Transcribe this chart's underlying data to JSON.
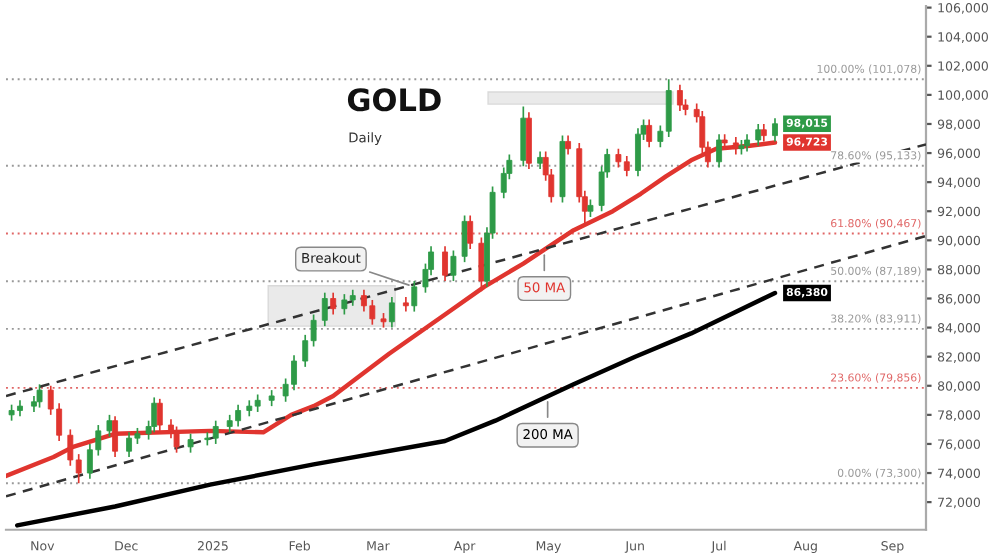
{
  "chart_data": {
    "type": "candlestick",
    "title": "GOLD",
    "subtitle": "Daily",
    "x": [
      "2024-10-21",
      "2024-10-24",
      "2024-10-29",
      "2024-10-31",
      "2024-11-04",
      "2024-11-07",
      "2024-11-11",
      "2024-11-14",
      "2024-11-18",
      "2024-11-21",
      "2024-11-25",
      "2024-11-27",
      "2024-12-02",
      "2024-12-05",
      "2024-12-09",
      "2024-12-11",
      "2024-12-13",
      "2024-12-17",
      "2024-12-19",
      "2024-12-24",
      "2024-12-30",
      "2025-01-02",
      "2025-01-07",
      "2025-01-10",
      "2025-01-14",
      "2025-01-17",
      "2025-01-22",
      "2025-01-27",
      "2025-01-30",
      "2025-02-03",
      "2025-02-06",
      "2025-02-10",
      "2025-02-13",
      "2025-02-17",
      "2025-02-20",
      "2025-02-24",
      "2025-02-27",
      "2025-03-03",
      "2025-03-06",
      "2025-03-11",
      "2025-03-14",
      "2025-03-18",
      "2025-03-20",
      "2025-03-25",
      "2025-03-28",
      "2025-04-01",
      "2025-04-03",
      "2025-04-07",
      "2025-04-09",
      "2025-04-11",
      "2025-04-15",
      "2025-04-17",
      "2025-04-22",
      "2025-04-24",
      "2025-04-28",
      "2025-04-30",
      "2025-05-02",
      "2025-05-06",
      "2025-05-08",
      "2025-05-12",
      "2025-05-14",
      "2025-05-16",
      "2025-05-20",
      "2025-05-22",
      "2025-05-26",
      "2025-05-29",
      "2025-06-02",
      "2025-06-04",
      "2025-06-06",
      "2025-06-10",
      "2025-06-13",
      "2025-06-17",
      "2025-06-19",
      "2025-06-23",
      "2025-06-25",
      "2025-06-27",
      "2025-07-01",
      "2025-07-03",
      "2025-07-07",
      "2025-07-09",
      "2025-07-11",
      "2025-07-15",
      "2025-07-17",
      "2025-07-21"
    ],
    "ohlc": [
      [
        78000,
        78700,
        77600,
        78300
      ],
      [
        78300,
        79000,
        77900,
        78600
      ],
      [
        78600,
        79300,
        78200,
        78900
      ],
      [
        78900,
        80100,
        78500,
        79700
      ],
      [
        79700,
        80000,
        78000,
        78400
      ],
      [
        78400,
        78800,
        76200,
        76600
      ],
      [
        76600,
        77000,
        74500,
        74900
      ],
      [
        74900,
        75300,
        73300,
        74000
      ],
      [
        74000,
        76000,
        73600,
        75600
      ],
      [
        75600,
        77300,
        75200,
        76900
      ],
      [
        76900,
        78000,
        76500,
        77600
      ],
      [
        77600,
        77900,
        75100,
        75500
      ],
      [
        75500,
        76800,
        75100,
        76400
      ],
      [
        76400,
        77100,
        76000,
        76700
      ],
      [
        76700,
        77600,
        76300,
        77200
      ],
      [
        77200,
        79200,
        76800,
        78800
      ],
      [
        78800,
        79100,
        76900,
        77300
      ],
      [
        77300,
        77700,
        76400,
        76800
      ],
      [
        76800,
        77200,
        75400,
        75800
      ],
      [
        75800,
        76700,
        75400,
        76300
      ],
      [
        76300,
        76800,
        75900,
        76400
      ],
      [
        76400,
        77600,
        76000,
        77200
      ],
      [
        77200,
        78000,
        76800,
        77600
      ],
      [
        77600,
        78700,
        77200,
        78300
      ],
      [
        78300,
        79000,
        77900,
        78600
      ],
      [
        78600,
        79400,
        78200,
        79000
      ],
      [
        79000,
        79700,
        78600,
        79300
      ],
      [
        79300,
        80500,
        78900,
        80100
      ],
      [
        80100,
        82100,
        79700,
        81700
      ],
      [
        81700,
        83500,
        81300,
        83100
      ],
      [
        83100,
        84900,
        82700,
        84500
      ],
      [
        84500,
        86400,
        84100,
        86000
      ],
      [
        86000,
        86400,
        84900,
        85300
      ],
      [
        85300,
        86300,
        84900,
        85900
      ],
      [
        85900,
        86600,
        85500,
        86200
      ],
      [
        86200,
        86600,
        85100,
        85500
      ],
      [
        85500,
        85900,
        84200,
        84600
      ],
      [
        84600,
        85000,
        84000,
        84400
      ],
      [
        84400,
        86100,
        84000,
        85700
      ],
      [
        85700,
        86100,
        85100,
        85500
      ],
      [
        85500,
        87200,
        85100,
        86800
      ],
      [
        86800,
        88400,
        86400,
        88000
      ],
      [
        88000,
        89600,
        87600,
        89200
      ],
      [
        89200,
        89600,
        87200,
        87600
      ],
      [
        87600,
        89300,
        87200,
        88900
      ],
      [
        88900,
        91700,
        88500,
        91300
      ],
      [
        91300,
        91700,
        89400,
        89800
      ],
      [
        89800,
        90200,
        86500,
        87200
      ],
      [
        87200,
        90900,
        86800,
        90500
      ],
      [
        90500,
        93700,
        90100,
        93300
      ],
      [
        93300,
        95000,
        92900,
        94600
      ],
      [
        94600,
        95900,
        94200,
        95500
      ],
      [
        95500,
        99200,
        95100,
        98400
      ],
      [
        98400,
        98800,
        94900,
        95300
      ],
      [
        95300,
        96100,
        94900,
        95700
      ],
      [
        95700,
        96100,
        94100,
        94500
      ],
      [
        94500,
        94900,
        92600,
        93000
      ],
      [
        93000,
        97200,
        92600,
        96800
      ],
      [
        96800,
        97200,
        95900,
        96300
      ],
      [
        96300,
        96700,
        92600,
        93000
      ],
      [
        93000,
        93400,
        91000,
        92000
      ],
      [
        92000,
        92800,
        91600,
        92400
      ],
      [
        92400,
        95100,
        92000,
        94700
      ],
      [
        94700,
        96300,
        94300,
        95900
      ],
      [
        95900,
        96300,
        95000,
        95400
      ],
      [
        95400,
        95800,
        94400,
        94800
      ],
      [
        94800,
        97700,
        94400,
        97300
      ],
      [
        97300,
        98300,
        96900,
        97900
      ],
      [
        97900,
        98300,
        96400,
        96800
      ],
      [
        96800,
        97900,
        96400,
        97500
      ],
      [
        97500,
        101078,
        97100,
        100300
      ],
      [
        100300,
        100700,
        98900,
        99300
      ],
      [
        99300,
        99700,
        98600,
        99000
      ],
      [
        99000,
        99400,
        98100,
        98500
      ],
      [
        98500,
        98900,
        96000,
        96400
      ],
      [
        96400,
        96800,
        95000,
        95400
      ],
      [
        95400,
        97300,
        95000,
        96900
      ],
      [
        96900,
        97300,
        96300,
        96700
      ],
      [
        96700,
        97100,
        95900,
        96300
      ],
      [
        96300,
        96900,
        95900,
        96500
      ],
      [
        96500,
        97300,
        96100,
        96900
      ],
      [
        96900,
        98000,
        96500,
        97600
      ],
      [
        97600,
        98000,
        96800,
        97200
      ],
      [
        97200,
        98400,
        96800,
        98015
      ]
    ],
    "value_labels": [
      null,
      null,
      null,
      null,
      null,
      null,
      null,
      null,
      null,
      null,
      null,
      null,
      null,
      null,
      null,
      null,
      null,
      null,
      null,
      null,
      null,
      null,
      null,
      null,
      null,
      null,
      null,
      null,
      null,
      null,
      null,
      null,
      null,
      null,
      null,
      null,
      null,
      null,
      null,
      null,
      null,
      null,
      null,
      null,
      null,
      null,
      null,
      null,
      null,
      null,
      null,
      null,
      null,
      null,
      null,
      null,
      null,
      null,
      null,
      null,
      null,
      null,
      null,
      null,
      null,
      null,
      null,
      null,
      null,
      null,
      null,
      null,
      null,
      null,
      null,
      null,
      null,
      null,
      null,
      null,
      null,
      null,
      null,
      "98,015"
    ],
    "series": [
      {
        "name": "50 MA",
        "type": "line",
        "color": "#e0352f",
        "x": [
          "2024-10-19",
          "2024-11-05",
          "2024-11-12",
          "2024-11-27",
          "2024-12-31",
          "2025-01-19",
          "2025-01-29",
          "2025-02-06",
          "2025-02-13",
          "2025-03-05",
          "2025-03-25",
          "2025-04-08",
          "2025-04-22",
          "2025-05-10",
          "2025-05-24",
          "2025-06-03",
          "2025-06-12",
          "2025-06-21",
          "2025-06-30",
          "2025-07-12",
          "2025-07-21"
        ],
        "values": [
          73800,
          75100,
          75800,
          76700,
          76900,
          76800,
          78000,
          78600,
          79300,
          82200,
          84900,
          86800,
          88400,
          90700,
          92000,
          93200,
          94400,
          95500,
          96300,
          96500,
          96723
        ],
        "value_labels": [
          null,
          null,
          null,
          null,
          null,
          null,
          null,
          null,
          null,
          null,
          null,
          null,
          null,
          null,
          null,
          null,
          null,
          null,
          null,
          null,
          "96,723"
        ]
      },
      {
        "name": "200 MA",
        "type": "line",
        "color": "#000000",
        "x": [
          "2024-10-23",
          "2024-11-27",
          "2024-12-31",
          "2025-02-06",
          "2025-03-25",
          "2025-04-12",
          "2025-05-10",
          "2025-06-01",
          "2025-06-21",
          "2025-07-21"
        ],
        "values": [
          70400,
          71700,
          73200,
          74600,
          76200,
          77600,
          80100,
          82000,
          83600,
          86380
        ],
        "value_labels": [
          null,
          null,
          null,
          null,
          null,
          null,
          null,
          null,
          null,
          "86,380"
        ]
      },
      {
        "type": "line",
        "color": "#333333",
        "line_style": "dashed",
        "x": [
          "2024-10-19",
          "2025-09-13"
        ],
        "values": [
          79300,
          96600
        ]
      },
      {
        "type": "line",
        "color": "#333333",
        "line_style": "dashed",
        "x": [
          "2024-10-19",
          "2025-09-13"
        ],
        "values": [
          72400,
          90300
        ]
      }
    ],
    "annotations": [
      {
        "text": "Breakout",
        "x": "2025-03-14",
        "y": 86800
      }
    ],
    "ref_lines": [
      {
        "axis": "y",
        "value": 101078,
        "label": "100.00% (101,078)",
        "color": "#999999",
        "line_style": "dotted"
      },
      {
        "axis": "y",
        "value": 95133,
        "label": "78.60% (95,133)",
        "color": "#999999",
        "line_style": "dotted"
      },
      {
        "axis": "y",
        "value": 90467,
        "label": "61.80% (90,467)",
        "color": "#e06666",
        "line_style": "dotted"
      },
      {
        "axis": "y",
        "value": 87189,
        "label": "50.00% (87,189)",
        "color": "#999999",
        "line_style": "dotted"
      },
      {
        "axis": "y",
        "value": 83911,
        "label": "38.20% (83,911)",
        "color": "#999999",
        "line_style": "dotted"
      },
      {
        "axis": "y",
        "value": 79856,
        "label": "23.60% (79,856)",
        "color": "#e06666",
        "line_style": "dotted"
      },
      {
        "axis": "y",
        "value": 73300,
        "label": "0.00% (73,300)",
        "color": "#999999",
        "line_style": "dotted"
      }
    ],
    "xlim": [
      "2024-10-19",
      "2025-09-13"
    ],
    "xticks": [
      {
        "value": "2024-11-01",
        "label": "Nov"
      },
      {
        "value": "2024-12-01",
        "label": "Dec"
      },
      {
        "value": "2025-01-01",
        "label": "2025"
      },
      {
        "value": "2025-02-01",
        "label": "Feb"
      },
      {
        "value": "2025-03-01",
        "label": "Mar"
      },
      {
        "value": "2025-04-01",
        "label": "Apr"
      },
      {
        "value": "2025-05-01",
        "label": "May"
      },
      {
        "value": "2025-06-01",
        "label": "Jun"
      },
      {
        "value": "2025-07-01",
        "label": "Jul"
      },
      {
        "value": "2025-08-01",
        "label": "Aug"
      },
      {
        "value": "2025-09-01",
        "label": "Sep"
      }
    ],
    "ylim": [
      70100,
      106100
    ],
    "yticks": [
      {
        "value": 72000,
        "label": "72,000"
      },
      {
        "value": 74000,
        "label": "74,000"
      },
      {
        "value": 76000,
        "label": "76,000"
      },
      {
        "value": 78000,
        "label": "78,000"
      },
      {
        "value": 80000,
        "label": "80,000"
      },
      {
        "value": 82000,
        "label": "82,000"
      },
      {
        "value": 84000,
        "label": "84,000"
      },
      {
        "value": 86000,
        "label": "86,000"
      },
      {
        "value": 88000,
        "label": "88,000"
      },
      {
        "value": 90000,
        "label": "90,000"
      },
      {
        "value": 92000,
        "label": "92,000"
      },
      {
        "value": 94000,
        "label": "94,000"
      },
      {
        "value": 96000,
        "label": "96,000"
      },
      {
        "value": 98000,
        "label": "98,000"
      },
      {
        "value": 100000,
        "label": "100,000"
      },
      {
        "value": 102000,
        "label": "102,000"
      },
      {
        "value": 104000,
        "label": "104,000"
      },
      {
        "value": 106000,
        "label": "106,000"
      }
    ],
    "grid": false,
    "legend": false
  }
}
